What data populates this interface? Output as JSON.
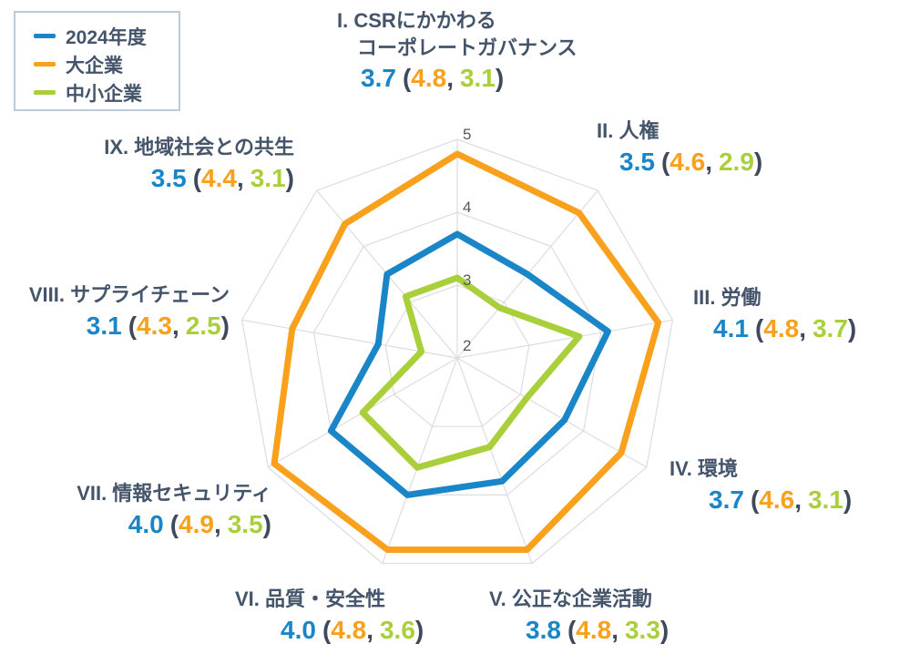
{
  "legend": {
    "items": [
      {
        "label": "2024年度",
        "color": "#1a86c8"
      },
      {
        "label": "大企業",
        "color": "#f9a11d"
      },
      {
        "label": "中小企業",
        "color": "#a9cf3b"
      }
    ]
  },
  "punctuation": {
    "open": "(",
    "comma": ",",
    "close": ")"
  },
  "colors": {
    "series_2024": "#1a86c8",
    "series_large": "#f9a11d",
    "series_sme": "#a9cf3b",
    "label_text": "#44546a",
    "tick_text": "#595959",
    "grid": "#dcdde0"
  },
  "chart_data": {
    "type": "radar",
    "title": "",
    "categories": [
      "I. CSRにかかわるコーポレートガバナンス",
      "II. 人権",
      "III. 労働",
      "IV. 環境",
      "V. 公正な企業活動",
      "VI. 品質・安全性",
      "VII. 情報セキュリティ",
      "VIII. サプライチェーン",
      "IX. 地域社会との共生"
    ],
    "series": [
      {
        "name": "2024年度",
        "color": "#1a86c8",
        "values": [
          3.7,
          3.5,
          4.1,
          3.7,
          3.8,
          4.0,
          4.0,
          3.1,
          3.5
        ]
      },
      {
        "name": "大企業",
        "color": "#f9a11d",
        "values": [
          4.8,
          4.6,
          4.8,
          4.6,
          4.8,
          4.8,
          4.9,
          4.3,
          4.4
        ]
      },
      {
        "name": "中小企業",
        "color": "#a9cf3b",
        "values": [
          3.1,
          2.9,
          3.7,
          3.1,
          3.3,
          3.6,
          3.5,
          2.5,
          3.1
        ]
      }
    ],
    "axis_range": [
      2,
      5
    ],
    "levels": [
      2,
      3,
      4,
      5
    ],
    "tick_labels": [
      "2",
      "3",
      "4",
      "5"
    ],
    "grid": true,
    "grid_color": "#dcdde0",
    "tick_color": "#595959",
    "legend_position": "top-left"
  },
  "axes": [
    {
      "label": "I. CSRにかかわる",
      "label2": "コーポレートガバナンス",
      "v2024": "3.7",
      "vlarge": "4.8",
      "vsme": "3.1"
    },
    {
      "label": "II. 人権",
      "v2024": "3.5",
      "vlarge": "4.6",
      "vsme": "2.9"
    },
    {
      "label": "III. 労働",
      "v2024": "4.1",
      "vlarge": "4.8",
      "vsme": "3.7"
    },
    {
      "label": "IV. 環境",
      "v2024": "3.7",
      "vlarge": "4.6",
      "vsme": "3.1"
    },
    {
      "label": "V. 公正な企業活動",
      "v2024": "3.8",
      "vlarge": "4.8",
      "vsme": "3.3"
    },
    {
      "label": "VI. 品質・安全性",
      "v2024": "4.0",
      "vlarge": "4.8",
      "vsme": "3.6"
    },
    {
      "label": "VII. 情報セキュリティ",
      "v2024": "4.0",
      "vlarge": "4.9",
      "vsme": "3.5"
    },
    {
      "label": "VIII. サプライチェーン",
      "v2024": "3.1",
      "vlarge": "4.3",
      "vsme": "2.5"
    },
    {
      "label": "IX. 地域社会との共生",
      "v2024": "3.5",
      "vlarge": "4.4",
      "vsme": "3.1"
    }
  ]
}
